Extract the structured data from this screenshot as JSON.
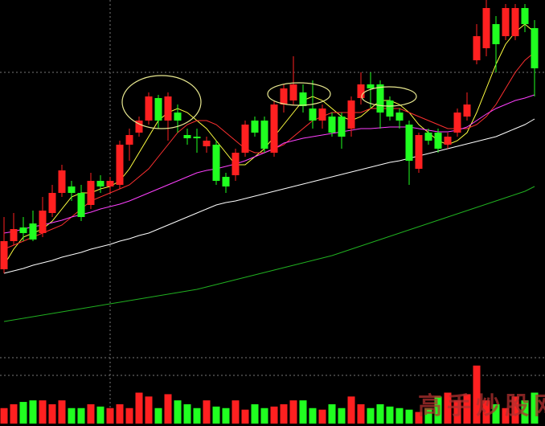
{
  "chart_data": {
    "type": "candlestick",
    "watermark": "高手炒股网",
    "ylim": [
      0,
      440
    ],
    "volume_ylim": [
      0,
      80
    ],
    "up_color": "#ff2020",
    "down_color": "#20ff20",
    "open": [
      105,
      140,
      157,
      162,
      150,
      175,
      200,
      208,
      200,
      185,
      215,
      208,
      210,
      260,
      275,
      290,
      318,
      290,
      300,
      272,
      270,
      258,
      260,
      220,
      222,
      250,
      290,
      290,
      250,
      310,
      315,
      325,
      305,
      290,
      295,
      295,
      280,
      318,
      335,
      335,
      315,
      300,
      285,
      230,
      275,
      275,
      260,
      275,
      295,
      365,
      380,
      410,
      395,
      395,
      430,
      405
    ],
    "close": [
      140,
      155,
      150,
      142,
      178,
      200,
      228,
      200,
      170,
      215,
      208,
      215,
      260,
      272,
      290,
      320,
      290,
      320,
      290,
      268,
      268,
      265,
      215,
      208,
      250,
      285,
      275,
      255,
      310,
      330,
      335,
      308,
      290,
      305,
      275,
      270,
      315,
      335,
      330,
      300,
      295,
      290,
      240,
      272,
      265,
      255,
      270,
      300,
      310,
      395,
      430,
      385,
      430,
      430,
      410,
      355
    ],
    "high": [
      170,
      175,
      170,
      178,
      195,
      210,
      235,
      215,
      210,
      225,
      222,
      220,
      265,
      280,
      295,
      325,
      322,
      325,
      310,
      280,
      280,
      270,
      265,
      225,
      255,
      290,
      295,
      295,
      315,
      335,
      370,
      335,
      340,
      310,
      300,
      300,
      320,
      350,
      350,
      340,
      320,
      305,
      290,
      275,
      280,
      280,
      275,
      305,
      325,
      410,
      440,
      420,
      435,
      435,
      435,
      415
    ],
    "low": [
      100,
      135,
      140,
      140,
      145,
      170,
      195,
      190,
      165,
      180,
      200,
      200,
      205,
      240,
      270,
      285,
      280,
      265,
      275,
      260,
      250,
      250,
      210,
      200,
      215,
      245,
      270,
      250,
      245,
      300,
      310,
      300,
      280,
      280,
      270,
      255,
      270,
      310,
      305,
      280,
      290,
      280,
      210,
      225,
      260,
      250,
      255,
      270,
      290,
      360,
      370,
      350,
      390,
      390,
      400,
      320
    ],
    "volume": [
      20,
      25,
      28,
      30,
      30,
      25,
      30,
      20,
      20,
      25,
      22,
      20,
      25,
      20,
      40,
      35,
      20,
      38,
      30,
      25,
      20,
      30,
      22,
      20,
      30,
      18,
      25,
      20,
      22,
      25,
      30,
      30,
      20,
      18,
      25,
      20,
      35,
      25,
      20,
      25,
      22,
      20,
      18,
      15,
      20,
      35,
      40,
      30,
      38,
      75,
      30,
      25,
      20,
      35,
      30,
      40
    ],
    "series": [
      {
        "color": "#ffff40",
        "values": [
          110,
          130,
          145,
          150,
          155,
          165,
          180,
          195,
          200,
          200,
          205,
          208,
          215,
          230,
          250,
          270,
          290,
          300,
          305,
          300,
          290,
          280,
          265,
          250,
          235,
          235,
          245,
          255,
          270,
          285,
          300,
          315,
          320,
          315,
          305,
          295,
          290,
          295,
          305,
          315,
          315,
          310,
          300,
          285,
          275,
          265,
          260,
          265,
          275,
          300,
          330,
          360,
          385,
          400,
          410,
          400
        ]
      },
      {
        "color": "#ff3030",
        "values": [
          130,
          135,
          140,
          145,
          150,
          155,
          160,
          170,
          180,
          190,
          195,
          200,
          205,
          210,
          220,
          230,
          245,
          260,
          275,
          285,
          290,
          290,
          285,
          275,
          265,
          255,
          250,
          250,
          255,
          260,
          270,
          280,
          290,
          295,
          300,
          300,
          300,
          300,
          305,
          305,
          305,
          305,
          300,
          295,
          290,
          285,
          280,
          280,
          280,
          285,
          295,
          310,
          330,
          350,
          365,
          375
        ]
      },
      {
        "color": "#ff40ff",
        "values": [
          150,
          152,
          155,
          158,
          160,
          163,
          166,
          170,
          173,
          176,
          180,
          183,
          186,
          190,
          195,
          200,
          205,
          210,
          215,
          220,
          225,
          228,
          230,
          233,
          236,
          240,
          245,
          250,
          255,
          262,
          265,
          268,
          270,
          272,
          274,
          276,
          278,
          280,
          280,
          281,
          282,
          282,
          282,
          280,
          278,
          276,
          276,
          278,
          282,
          290,
          298,
          305,
          310,
          315,
          318,
          322
        ]
      },
      {
        "color": "#ffffff",
        "values": [
          100,
          103,
          106,
          110,
          113,
          116,
          120,
          123,
          126,
          130,
          133,
          136,
          140,
          143,
          147,
          150,
          155,
          160,
          165,
          170,
          175,
          180,
          185,
          188,
          190,
          193,
          196,
          199,
          202,
          205,
          208,
          211,
          214,
          217,
          220,
          223,
          226,
          229,
          232,
          235,
          238,
          240,
          243,
          246,
          249,
          252,
          255,
          258,
          261,
          264,
          267,
          270,
          275,
          280,
          285,
          292
        ]
      },
      {
        "color": "#20b020",
        "values": [
          40,
          42,
          44,
          46,
          48,
          50,
          52,
          54,
          56,
          58,
          60,
          62,
          64,
          66,
          68,
          70,
          72,
          74,
          76,
          78,
          80,
          83,
          86,
          89,
          92,
          95,
          98,
          101,
          104,
          107,
          110,
          113,
          116,
          119,
          122,
          126,
          130,
          134,
          138,
          142,
          146,
          150,
          154,
          158,
          162,
          166,
          170,
          174,
          178,
          182,
          186,
          190,
          194,
          198,
          202,
          208
        ]
      }
    ]
  }
}
